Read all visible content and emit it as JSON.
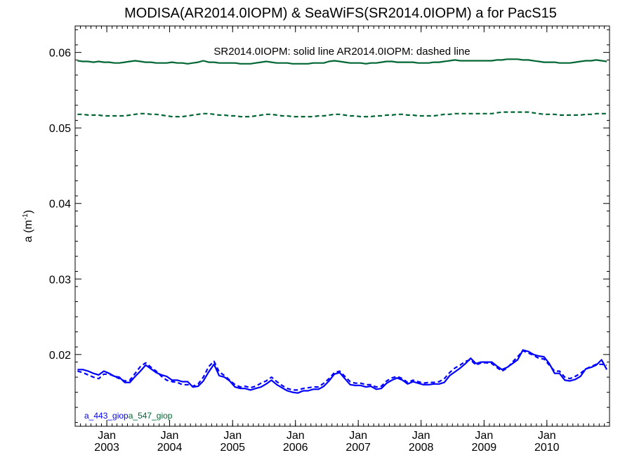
{
  "chart_data": {
    "type": "line",
    "title": "MODISA(AR2014.0IOPM) & SeaWiFS(SR2014.0IOPM)  a for PacS15",
    "annotation": "SR2014.0IOPM: solid line   AR2014.0IOPM: dashed line",
    "ylabel_main": "a (m",
    "ylabel_sup": "-1",
    "ylabel_tail": ")",
    "ylim": [
      0.0105,
      0.0635
    ],
    "xlim": [
      "2002-07-01",
      "2010-12-31"
    ],
    "x_tick_labels": [
      {
        "date": "2003-01-01",
        "month": "Jan",
        "year": "2003"
      },
      {
        "date": "2004-01-01",
        "month": "Jan",
        "year": "2004"
      },
      {
        "date": "2005-01-01",
        "month": "Jan",
        "year": "2005"
      },
      {
        "date": "2006-01-01",
        "month": "Jan",
        "year": "2006"
      },
      {
        "date": "2007-01-01",
        "month": "Jan",
        "year": "2007"
      },
      {
        "date": "2008-01-01",
        "month": "Jan",
        "year": "2008"
      },
      {
        "date": "2009-01-01",
        "month": "Jan",
        "year": "2009"
      },
      {
        "date": "2010-01-01",
        "month": "Jan",
        "year": "2010"
      }
    ],
    "y_ticks": [
      {
        "value": 0.02,
        "label": "0.02"
      },
      {
        "value": 0.03,
        "label": "0.03"
      },
      {
        "value": 0.04,
        "label": "0.04"
      },
      {
        "value": 0.05,
        "label": "0.05"
      },
      {
        "value": 0.06,
        "label": "0.06"
      }
    ],
    "x": [
      "2002-07",
      "2002-08",
      "2002-09",
      "2002-10",
      "2002-11",
      "2002-12",
      "2003-01",
      "2003-02",
      "2003-03",
      "2003-04",
      "2003-05",
      "2003-06",
      "2003-07",
      "2003-08",
      "2003-09",
      "2003-10",
      "2003-11",
      "2003-12",
      "2004-01",
      "2004-02",
      "2004-03",
      "2004-04",
      "2004-05",
      "2004-06",
      "2004-07",
      "2004-08",
      "2004-09",
      "2004-10",
      "2004-11",
      "2004-12",
      "2005-01",
      "2005-02",
      "2005-03",
      "2005-04",
      "2005-05",
      "2005-06",
      "2005-07",
      "2005-08",
      "2005-09",
      "2005-10",
      "2005-11",
      "2005-12",
      "2006-01",
      "2006-02",
      "2006-03",
      "2006-04",
      "2006-05",
      "2006-06",
      "2006-07",
      "2006-08",
      "2006-09",
      "2006-10",
      "2006-11",
      "2006-12",
      "2007-01",
      "2007-02",
      "2007-03",
      "2007-04",
      "2007-05",
      "2007-06",
      "2007-07",
      "2007-08",
      "2007-09",
      "2007-10",
      "2007-11",
      "2007-12",
      "2008-01",
      "2008-02",
      "2008-03",
      "2008-04",
      "2008-05",
      "2008-06",
      "2008-07",
      "2008-08",
      "2008-09",
      "2008-10",
      "2008-11",
      "2008-12",
      "2009-01",
      "2009-02",
      "2009-03",
      "2009-04",
      "2009-05",
      "2009-06",
      "2009-07",
      "2009-08",
      "2009-09",
      "2009-10",
      "2009-11",
      "2009-12",
      "2010-01",
      "2010-02",
      "2010-03",
      "2010-04",
      "2010-05",
      "2010-06",
      "2010-07",
      "2010-08",
      "2010-09",
      "2010-10",
      "2010-11",
      "2010-12"
    ],
    "series": [
      {
        "name": "a_547_giop",
        "product": "SR2014.0IOPM",
        "style": "solid",
        "color": "#006633",
        "values": [
          0.0589,
          0.0588,
          0.0588,
          0.0587,
          0.0588,
          0.0587,
          0.0587,
          0.0586,
          0.0586,
          0.0587,
          0.0588,
          0.0589,
          0.0588,
          0.0587,
          0.0587,
          0.0586,
          0.0586,
          0.0586,
          0.0587,
          0.0586,
          0.0586,
          0.0585,
          0.0586,
          0.0587,
          0.0589,
          0.0587,
          0.0587,
          0.0586,
          0.0586,
          0.0586,
          0.0586,
          0.0585,
          0.0585,
          0.0585,
          0.0586,
          0.0587,
          0.0588,
          0.0587,
          0.0586,
          0.0586,
          0.0586,
          0.0585,
          0.0585,
          0.0585,
          0.0585,
          0.0586,
          0.0586,
          0.0586,
          0.0588,
          0.0589,
          0.0588,
          0.0587,
          0.0586,
          0.0586,
          0.0586,
          0.0585,
          0.0586,
          0.0586,
          0.0587,
          0.0588,
          0.0588,
          0.0587,
          0.0587,
          0.0587,
          0.0587,
          0.0586,
          0.0586,
          0.0586,
          0.0587,
          0.0587,
          0.0588,
          0.0589,
          0.059,
          0.0589,
          0.0589,
          0.0589,
          0.0589,
          0.0589,
          0.0589,
          0.0589,
          0.059,
          0.059,
          0.0591,
          0.0591,
          0.0591,
          0.059,
          0.059,
          0.0589,
          0.0588,
          0.0587,
          0.0587,
          0.0587,
          0.0586,
          0.0586,
          0.0586,
          0.0587,
          0.0588,
          0.0589,
          0.0589,
          0.059,
          0.0589,
          0.0588
        ]
      },
      {
        "name": "a_547_giop",
        "product": "AR2014.0IOPM",
        "style": "dashed",
        "color": "#006633",
        "values": [
          0.0518,
          0.0518,
          0.0517,
          0.0517,
          0.0517,
          0.0516,
          0.0516,
          0.0516,
          0.0516,
          0.0516,
          0.0517,
          0.0518,
          0.0519,
          0.0519,
          0.0518,
          0.0518,
          0.0517,
          0.0516,
          0.0515,
          0.0515,
          0.0515,
          0.0516,
          0.0517,
          0.0518,
          0.0519,
          0.0519,
          0.0518,
          0.0517,
          0.0517,
          0.0516,
          0.0516,
          0.0515,
          0.0515,
          0.0515,
          0.0516,
          0.0517,
          0.0518,
          0.0518,
          0.0517,
          0.0516,
          0.0516,
          0.0515,
          0.0515,
          0.0515,
          0.0515,
          0.0515,
          0.0516,
          0.0516,
          0.0517,
          0.0518,
          0.0518,
          0.0517,
          0.0516,
          0.0516,
          0.0515,
          0.0515,
          0.0515,
          0.0516,
          0.0516,
          0.0517,
          0.0517,
          0.0518,
          0.0518,
          0.0517,
          0.0517,
          0.0516,
          0.0516,
          0.0516,
          0.0516,
          0.0517,
          0.0518,
          0.0518,
          0.0519,
          0.0519,
          0.0519,
          0.0519,
          0.0519,
          0.0519,
          0.0519,
          0.0519,
          0.052,
          0.0521,
          0.0521,
          0.0521,
          0.0521,
          0.0521,
          0.0521,
          0.052,
          0.0519,
          0.0518,
          0.0518,
          0.0518,
          0.0517,
          0.0517,
          0.0517,
          0.0517,
          0.0517,
          0.0518,
          0.0518,
          0.0519,
          0.0519,
          0.0519
        ]
      },
      {
        "name": "a_443_giop",
        "product": "SR2014.0IOPM",
        "style": "solid",
        "color": "#0000ff",
        "values": [
          0.018,
          0.018,
          0.0178,
          0.0175,
          0.0173,
          0.0178,
          0.0175,
          0.0171,
          0.017,
          0.0163,
          0.0163,
          0.0171,
          0.0178,
          0.0186,
          0.0181,
          0.0176,
          0.0173,
          0.0171,
          0.0166,
          0.0166,
          0.0164,
          0.0164,
          0.0157,
          0.0158,
          0.0165,
          0.0177,
          0.0187,
          0.0172,
          0.017,
          0.0165,
          0.0157,
          0.0155,
          0.0155,
          0.0153,
          0.0155,
          0.0157,
          0.0161,
          0.0166,
          0.016,
          0.0156,
          0.0152,
          0.015,
          0.0149,
          0.0152,
          0.0152,
          0.0154,
          0.0154,
          0.0158,
          0.0165,
          0.0174,
          0.0176,
          0.0168,
          0.016,
          0.0159,
          0.0159,
          0.0157,
          0.0158,
          0.0154,
          0.0155,
          0.0162,
          0.0166,
          0.0169,
          0.0166,
          0.0161,
          0.0164,
          0.0162,
          0.016,
          0.016,
          0.0161,
          0.0161,
          0.0163,
          0.0172,
          0.0177,
          0.0182,
          0.0188,
          0.0195,
          0.0188,
          0.019,
          0.019,
          0.019,
          0.0185,
          0.018,
          0.0183,
          0.0188,
          0.0193,
          0.0206,
          0.0204,
          0.02,
          0.0198,
          0.0197,
          0.0188,
          0.0175,
          0.0175,
          0.0166,
          0.0165,
          0.0167,
          0.0171,
          0.0181,
          0.0183,
          0.0186,
          0.0193,
          0.018
        ]
      },
      {
        "name": "a_443_giop",
        "product": "AR2014.0IOPM",
        "style": "dashed",
        "color": "#0000ff",
        "values": [
          0.0178,
          0.0176,
          0.0173,
          0.017,
          0.0168,
          0.0174,
          0.0174,
          0.0171,
          0.0168,
          0.0165,
          0.0166,
          0.0175,
          0.0184,
          0.0189,
          0.0183,
          0.0178,
          0.0171,
          0.0166,
          0.0164,
          0.0163,
          0.016,
          0.016,
          0.0158,
          0.0161,
          0.017,
          0.0184,
          0.0191,
          0.0177,
          0.0172,
          0.0166,
          0.016,
          0.0157,
          0.0158,
          0.0156,
          0.0158,
          0.0162,
          0.0165,
          0.017,
          0.0164,
          0.0159,
          0.0155,
          0.0153,
          0.0153,
          0.0155,
          0.0156,
          0.0157,
          0.0157,
          0.0162,
          0.0168,
          0.0176,
          0.0178,
          0.0171,
          0.0164,
          0.0162,
          0.0162,
          0.016,
          0.016,
          0.0157,
          0.0158,
          0.0165,
          0.0169,
          0.0171,
          0.0168,
          0.0163,
          0.0166,
          0.0164,
          0.0162,
          0.0163,
          0.0163,
          0.0164,
          0.0168,
          0.0176,
          0.0182,
          0.0186,
          0.0191,
          0.0193,
          0.0186,
          0.0189,
          0.0189,
          0.0188,
          0.0183,
          0.0178,
          0.0182,
          0.019,
          0.0197,
          0.0205,
          0.0202,
          0.0199,
          0.0195,
          0.0194,
          0.0186,
          0.0178,
          0.0178,
          0.017,
          0.0168,
          0.0171,
          0.0175,
          0.0181,
          0.0184,
          0.0187,
          0.0187,
          0.0186
        ]
      }
    ],
    "legend": [
      {
        "label": "a_443_giop",
        "color": "#0000ff"
      },
      {
        "label": "a_547_giop",
        "color": "#006633"
      }
    ],
    "legend_placement": "bottom-left",
    "grid": false
  }
}
